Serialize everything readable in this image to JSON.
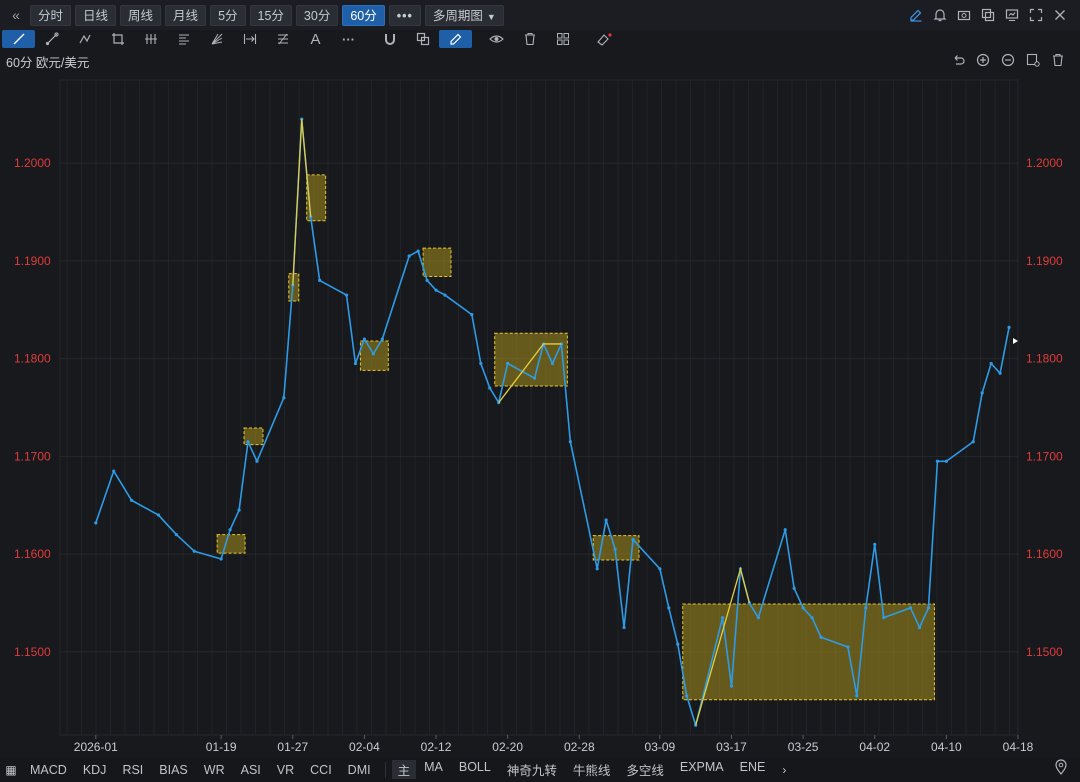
{
  "toolbar": {
    "periods": [
      "分时",
      "日线",
      "周线",
      "月线",
      "5分",
      "15分",
      "30分",
      "60分"
    ],
    "active_period": "60分",
    "more_label": "•••",
    "multi_period_label": "多周期图",
    "right_icons": [
      "pencil-icon",
      "bell-icon",
      "camera-icon",
      "copy-window-icon",
      "monitor-icon",
      "fullscreen-icon",
      "close-icon"
    ]
  },
  "drawing_tools": [
    "line-tool-icon",
    "ray-tool-icon",
    "polyline-tool-icon",
    "crop-tool-icon",
    "fork-tool-icon",
    "parallel-lines-icon",
    "fan-tool-icon",
    "range-tool-icon",
    "fib-tool-icon",
    "text-tool-icon",
    "more-tools-icon",
    "magnet-icon",
    "layers-icon",
    "draw-active-icon",
    "eye-icon",
    "trash-icon",
    "group-icon",
    "eraser-icon"
  ],
  "chart_header": {
    "label": "60分 欧元/美元",
    "icons": [
      "undo-icon",
      "zoom-in-icon",
      "zoom-out-icon",
      "settings-icon",
      "delete-icon"
    ]
  },
  "colors": {
    "price_line": "#2e9be6",
    "price_axis": "#e03b3b",
    "box_fill": "#a6901a",
    "box_border": "#e8c834",
    "zigzag": "#e6cc40",
    "background": "#17191d",
    "grid": "#25282d"
  },
  "chart_data": {
    "type": "line",
    "title": "欧元/美元",
    "interval": "60分",
    "ylim": [
      1.1415,
      1.2085
    ],
    "y_ticks": [
      "1.1500",
      "1.1600",
      "1.1700",
      "1.1800",
      "1.1900",
      "1.2000"
    ],
    "x_ticks": [
      "2026-01",
      "01-19",
      "01-27",
      "02-04",
      "02-12",
      "02-20",
      "02-28",
      "03-09",
      "03-17",
      "03-25",
      "04-02",
      "04-10",
      "04-18"
    ],
    "series": [
      {
        "x": [
          "01-05",
          "01-07",
          "01-09",
          "01-12",
          "01-14",
          "01-16",
          "01-19",
          "01-20",
          "01-21",
          "01-22",
          "01-23",
          "01-26",
          "01-27",
          "01-28",
          "01-29",
          "01-30",
          "02-02",
          "02-03",
          "02-04",
          "02-05",
          "02-06",
          "02-09",
          "02-10",
          "02-11",
          "02-12",
          "02-13",
          "02-16",
          "02-17",
          "02-18",
          "02-19",
          "02-20",
          "02-23",
          "02-24",
          "02-25",
          "02-26",
          "02-27",
          "03-02",
          "03-03",
          "03-04",
          "03-05",
          "03-06",
          "03-09",
          "03-10",
          "03-11",
          "03-12",
          "03-13",
          "03-16",
          "03-17",
          "03-18",
          "03-19",
          "03-20",
          "03-23",
          "03-24",
          "03-25",
          "03-26",
          "03-27",
          "03-30",
          "03-31",
          "04-01",
          "04-02",
          "04-03",
          "04-06",
          "04-07",
          "04-08",
          "04-09",
          "04-10",
          "04-13",
          "04-14",
          "04-15",
          "04-16",
          "04-17"
        ],
        "values": [
          1.1632,
          1.1685,
          1.1655,
          1.164,
          1.162,
          1.1603,
          1.1595,
          1.1625,
          1.1645,
          1.1715,
          1.1695,
          1.176,
          1.1875,
          1.2045,
          1.1945,
          1.188,
          1.1865,
          1.1795,
          1.182,
          1.1805,
          1.182,
          1.1905,
          1.191,
          1.188,
          1.187,
          1.1865,
          1.1845,
          1.1795,
          1.177,
          1.1755,
          1.1795,
          1.178,
          1.1815,
          1.1795,
          1.1815,
          1.1715,
          1.1585,
          1.1635,
          1.1605,
          1.1525,
          1.1615,
          1.1585,
          1.1545,
          1.1508,
          1.1455,
          1.1425,
          1.1535,
          1.1465,
          1.1585,
          1.155,
          1.1535,
          1.1625,
          1.1565,
          1.1545,
          1.1535,
          1.1515,
          1.1505,
          1.1455,
          1.1545,
          1.161,
          1.1535,
          1.1545,
          1.1525,
          1.1545,
          1.1695,
          1.1695,
          1.1715,
          1.1765,
          1.1795,
          1.1785,
          1.1832
        ]
      }
    ],
    "boxes": [
      {
        "x0": "01-19",
        "x1": "01-21",
        "y0": 1.1601,
        "y1": 1.162
      },
      {
        "x0": "01-22",
        "x1": "01-23",
        "y0": 1.1712,
        "y1": 1.1729
      },
      {
        "x0": "01-27",
        "x1": "01-27",
        "y0": 1.1859,
        "y1": 1.1887
      },
      {
        "x0": "01-29",
        "x1": "01-30",
        "y0": 1.1941,
        "y1": 1.1988
      },
      {
        "x0": "02-04",
        "x1": "02-06",
        "y0": 1.1788,
        "y1": 1.1818
      },
      {
        "x0": "02-11",
        "x1": "02-13",
        "y0": 1.1884,
        "y1": 1.1913
      },
      {
        "x0": "02-19",
        "x1": "02-26",
        "y0": 1.1772,
        "y1": 1.1826
      },
      {
        "x0": "03-02",
        "x1": "03-06",
        "y0": 1.1594,
        "y1": 1.1619
      },
      {
        "x0": "03-12",
        "x1": "04-08",
        "y0": 1.1451,
        "y1": 1.1549
      }
    ],
    "price_marker": 1.1818
  },
  "bottom": {
    "left_icon": "calendar-grid-icon",
    "indicators_left": [
      "MACD",
      "KDJ",
      "RSI",
      "BIAS",
      "WR",
      "ASI",
      "VR",
      "CCI",
      "DMI"
    ],
    "main_label": "主",
    "indicators_right": [
      "MA",
      "BOLL",
      "神奇九转",
      "牛熊线",
      "多空线",
      "EXPMA",
      "ENE"
    ],
    "next_icon": "chevron-right-icon",
    "location_icon": "location-pin-icon"
  }
}
